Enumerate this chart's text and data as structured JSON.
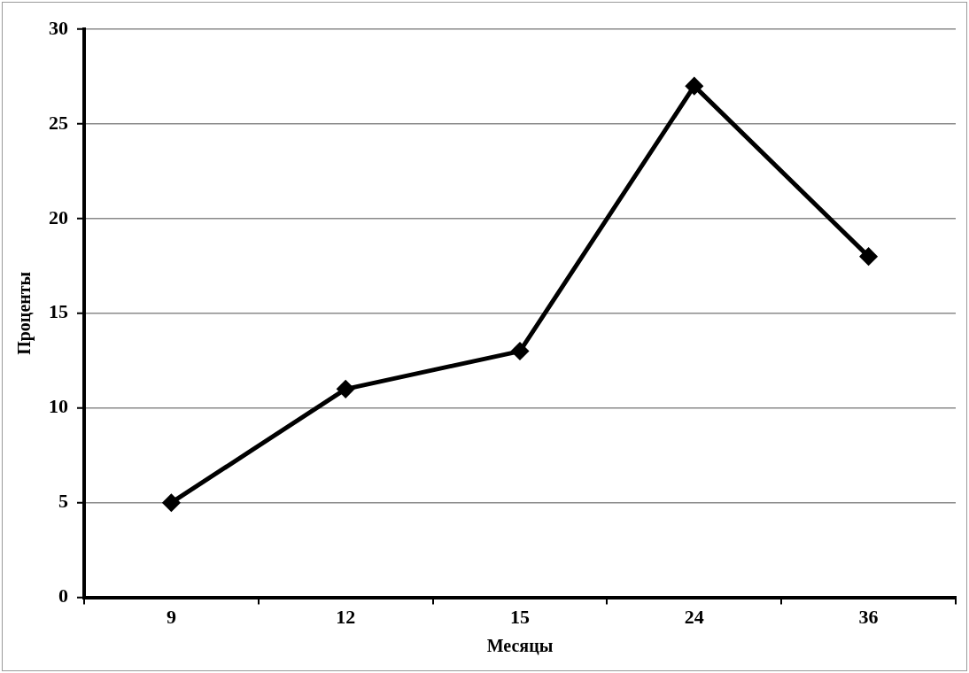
{
  "chart_data": {
    "type": "line",
    "xlabel": "Месяцы",
    "ylabel": "Проценты",
    "categories": [
      "9",
      "12",
      "15",
      "24",
      "36"
    ],
    "values": [
      5,
      11,
      13,
      27,
      18
    ],
    "color": "#000000",
    "ylim": [
      0,
      30
    ],
    "yticks": [
      0,
      5,
      10,
      15,
      20,
      25,
      30
    ],
    "grid": "y",
    "marker": "diamond"
  }
}
